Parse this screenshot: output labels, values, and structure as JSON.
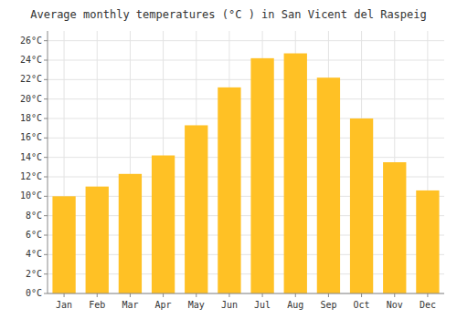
{
  "chart_data": {
    "type": "bar",
    "title": "Average monthly temperatures (°C ) in San Vicent del Raspeig",
    "categories": [
      "Jan",
      "Feb",
      "Mar",
      "Apr",
      "May",
      "Jun",
      "Jul",
      "Aug",
      "Sep",
      "Oct",
      "Nov",
      "Dec"
    ],
    "values": [
      10.0,
      11.0,
      12.3,
      14.2,
      17.3,
      21.2,
      24.2,
      24.7,
      22.2,
      18.0,
      13.5,
      10.6
    ],
    "color": "#FFC125",
    "ylim": [
      0,
      27
    ],
    "yticks": [
      {
        "value": 0,
        "label": "0°C"
      },
      {
        "value": 2,
        "label": "2°C"
      },
      {
        "value": 4,
        "label": "4°C"
      },
      {
        "value": 6,
        "label": "6°C"
      },
      {
        "value": 8,
        "label": "8°C"
      },
      {
        "value": 10,
        "label": "10°C"
      },
      {
        "value": 12,
        "label": "12°C"
      },
      {
        "value": 14,
        "label": "14°C"
      },
      {
        "value": 16,
        "label": "16°C"
      },
      {
        "value": 18,
        "label": "18°C"
      },
      {
        "value": 20,
        "label": "20°C"
      },
      {
        "value": 22,
        "label": "22°C"
      },
      {
        "value": 24,
        "label": "24°C"
      },
      {
        "value": 26,
        "label": "26°C"
      }
    ],
    "grid": true
  }
}
